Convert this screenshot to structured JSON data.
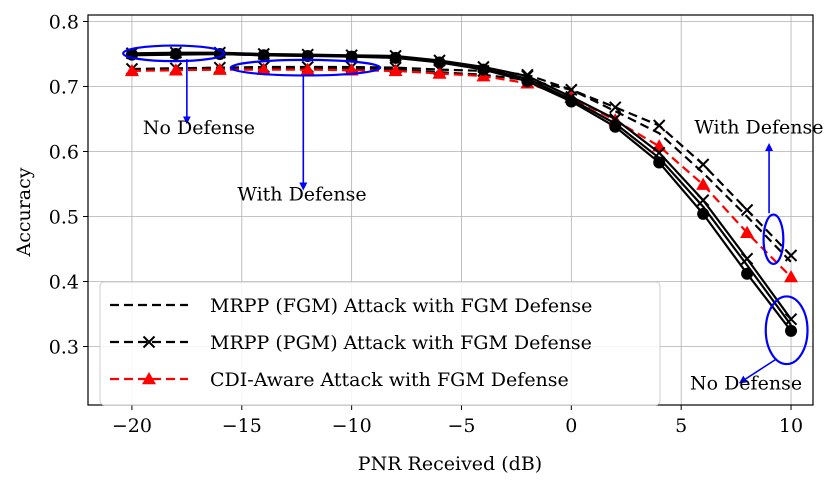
{
  "chart_data": {
    "type": "line",
    "xlabel": "PNR Received (dB)",
    "ylabel": "Accuracy",
    "xlim": [
      -22,
      11
    ],
    "ylim": [
      0.21,
      0.81
    ],
    "xticks": [
      -20,
      -15,
      -10,
      -5,
      0,
      5,
      10
    ],
    "xtick_labels": [
      "−20",
      "−15",
      "−10",
      "−5",
      "0",
      "5",
      "10"
    ],
    "yticks": [
      0.3,
      0.4,
      0.5,
      0.6,
      0.7,
      0.8
    ],
    "ytick_labels": [
      "0.3",
      "0.4",
      "0.5",
      "0.6",
      "0.7",
      "0.8"
    ],
    "grid": true,
    "legend_position": "lower-left",
    "x": [
      -20,
      -18,
      -16,
      -14,
      -12,
      -10,
      -8,
      -6,
      -4,
      -2,
      0,
      2,
      4,
      6,
      8,
      10
    ],
    "series": [
      {
        "name": "MRPP (FGM) Attack with FGM Defense",
        "color": "#000000",
        "dash": "dashed",
        "marker": "none",
        "in_legend": true,
        "values": [
          0.725,
          0.726,
          0.727,
          0.727,
          0.727,
          0.727,
          0.726,
          0.722,
          0.718,
          0.71,
          0.695,
          0.662,
          0.628,
          0.567,
          0.5,
          0.43
        ]
      },
      {
        "name": "MRPP (PGM) Attack with FGM Defense",
        "color": "#000000",
        "dash": "dashed",
        "marker": "x",
        "in_legend": true,
        "values": [
          0.727,
          0.728,
          0.729,
          0.73,
          0.73,
          0.73,
          0.729,
          0.726,
          0.724,
          0.718,
          0.695,
          0.668,
          0.64,
          0.58,
          0.51,
          0.44
        ]
      },
      {
        "name": "CDI-Aware Attack with FGM Defense",
        "color": "#ff0000",
        "dash": "dashed",
        "marker": "triangle",
        "in_legend": true,
        "values": [
          0.724,
          0.725,
          0.726,
          0.726,
          0.726,
          0.725,
          0.724,
          0.72,
          0.716,
          0.705,
          0.683,
          0.648,
          0.608,
          0.549,
          0.475,
          0.407
        ]
      },
      {
        "name": "",
        "color": "#000000",
        "dash": "solid",
        "marker": "none",
        "in_legend": false,
        "values": [
          0.748,
          0.749,
          0.75,
          0.748,
          0.747,
          0.747,
          0.745,
          0.738,
          0.727,
          0.712,
          0.68,
          0.643,
          0.59,
          0.515,
          0.425,
          0.333
        ]
      },
      {
        "name": "",
        "color": "#000000",
        "dash": "solid",
        "marker": "x",
        "in_legend": false,
        "values": [
          0.751,
          0.752,
          0.752,
          0.75,
          0.749,
          0.748,
          0.747,
          0.74,
          0.73,
          0.716,
          0.684,
          0.65,
          0.598,
          0.525,
          0.435,
          0.342
        ]
      },
      {
        "name": "",
        "color": "#000000",
        "dash": "solid",
        "marker": "circle",
        "in_legend": false,
        "values": [
          0.749,
          0.75,
          0.75,
          0.748,
          0.747,
          0.746,
          0.744,
          0.737,
          0.726,
          0.708,
          0.677,
          0.638,
          0.583,
          0.504,
          0.412,
          0.324
        ]
      }
    ],
    "annotations": [
      {
        "text": "No Defense",
        "x": -19.5,
        "y": 0.627,
        "anchor": "start"
      },
      {
        "text": "With Defense",
        "x": -15.2,
        "y": 0.525,
        "anchor": "start"
      },
      {
        "text": "With Defense",
        "x": 5.6,
        "y": 0.628,
        "anchor": "start"
      },
      {
        "text": "No Defense",
        "x": 5.4,
        "y": 0.234,
        "anchor": "start"
      }
    ],
    "highlight_ellipses": [
      {
        "cx": -18.1,
        "cy": 0.751,
        "rx": 2.3,
        "ry": 0.012,
        "color": "#0000ff"
      },
      {
        "cx": -12.1,
        "cy": 0.729,
        "rx": 3.4,
        "ry": 0.012,
        "color": "#0000ff"
      },
      {
        "cx": 9.2,
        "cy": 0.465,
        "rx": 0.45,
        "ry": 0.038,
        "color": "#0000ff"
      },
      {
        "cx": 9.8,
        "cy": 0.325,
        "rx": 0.95,
        "ry": 0.052,
        "color": "#0000ff"
      }
    ],
    "annotation_arrows": [
      {
        "from": [
          -17.5,
          0.742
        ],
        "to": [
          -17.5,
          0.645
        ],
        "color": "#0000ff"
      },
      {
        "from": [
          -12.2,
          0.718
        ],
        "to": [
          -12.2,
          0.543
        ],
        "color": "#0000ff"
      },
      {
        "from": [
          9.0,
          0.505
        ],
        "to": [
          9.0,
          0.61
        ],
        "color": "#0000ff"
      },
      {
        "from": [
          9.3,
          0.28
        ],
        "to": [
          7.7,
          0.245
        ],
        "color": "#0000ff"
      }
    ]
  }
}
